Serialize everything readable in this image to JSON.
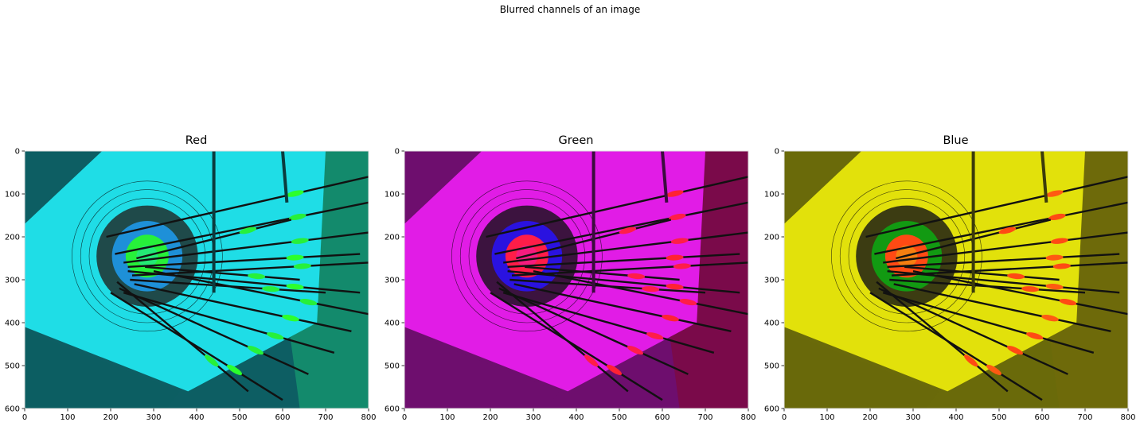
{
  "figure": {
    "suptitle": "Blurred channels of an image"
  },
  "chart_data": [
    {
      "type": "image",
      "title": "Red",
      "xlabel": "",
      "ylabel": "",
      "xlim": [
        0,
        800
      ],
      "ylim": [
        600,
        0
      ],
      "xticks": [
        0,
        100,
        200,
        300,
        400,
        500,
        600,
        700,
        800
      ],
      "yticks": [
        0,
        100,
        200,
        300,
        400,
        500,
        600
      ],
      "grid": false,
      "colors": {
        "base": "#1fdde6",
        "mid": "#1e90d8",
        "dark": "#1f4a4a",
        "center": "#27f03a",
        "deep": "#0d5e63",
        "fletch": "#2cff2c",
        "shadow": "#0b3b3e",
        "field": "#138a6c"
      }
    },
    {
      "type": "image",
      "title": "Green",
      "xlabel": "",
      "ylabel": "",
      "xlim": [
        0,
        800
      ],
      "ylim": [
        600,
        0
      ],
      "xticks": [
        0,
        100,
        200,
        300,
        400,
        500,
        600,
        700,
        800
      ],
      "yticks": [
        0,
        100,
        200,
        300,
        400,
        500,
        600
      ],
      "grid": false,
      "colors": {
        "base": "#e11ce6",
        "mid": "#2a12e0",
        "dark": "#3c133f",
        "center": "#ff1d48",
        "deep": "#6e0e6e",
        "fletch": "#ff2233",
        "shadow": "#3b0b3e",
        "field": "#7a0a4a"
      }
    },
    {
      "type": "image",
      "title": "Blue",
      "xlabel": "",
      "ylabel": "",
      "xlim": [
        0,
        800
      ],
      "ylim": [
        600,
        0
      ],
      "xticks": [
        0,
        100,
        200,
        300,
        400,
        500,
        600,
        700,
        800
      ],
      "yticks": [
        0,
        100,
        200,
        300,
        400,
        500,
        600
      ],
      "grid": false,
      "colors": {
        "base": "#e2e10b",
        "mid": "#129a12",
        "dark": "#3c3c12",
        "center": "#ff4a14",
        "deep": "#6a6a0a",
        "fletch": "#ff5a12",
        "shadow": "#3b3b0b",
        "field": "#6e6a0a"
      }
    }
  ]
}
